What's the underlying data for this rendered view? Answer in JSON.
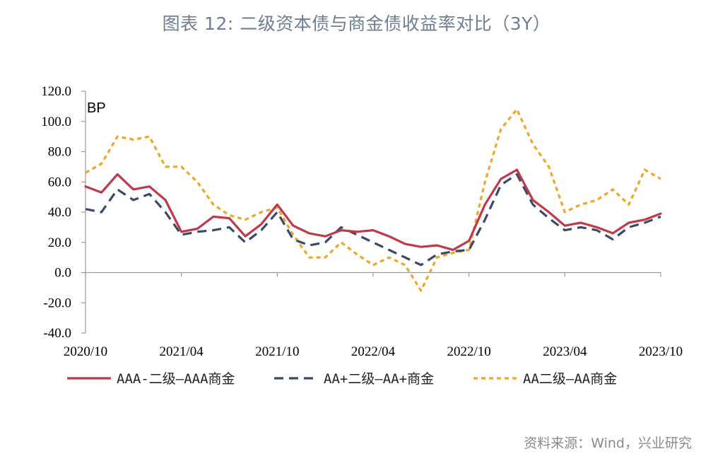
{
  "title": "图表 12: 二级资本债与商金债收益率对比（3Y）",
  "source": "资料来源：Wind，兴业研究",
  "chart_data": {
    "type": "line",
    "unit": "BP",
    "ylim": [
      -40,
      120
    ],
    "yticks": [
      "120.0",
      "100.0",
      "80.0",
      "60.0",
      "40.0",
      "20.0",
      "0.0",
      "-20.0",
      "-40.0"
    ],
    "xticks": [
      "2020/10",
      "2021/04",
      "2021/10",
      "2022/04",
      "2022/10",
      "2023/04",
      "2023/10"
    ],
    "x": [
      "2020-10",
      "2020-11",
      "2020-12",
      "2021-01",
      "2021-02",
      "2021-03",
      "2021-04",
      "2021-05",
      "2021-06",
      "2021-07",
      "2021-08",
      "2021-09",
      "2021-10",
      "2021-11",
      "2021-12",
      "2022-01",
      "2022-02",
      "2022-03",
      "2022-04",
      "2022-05",
      "2022-06",
      "2022-07",
      "2022-08",
      "2022-09",
      "2022-10",
      "2022-11",
      "2022-12",
      "2023-01",
      "2023-02",
      "2023-03",
      "2023-04",
      "2023-05",
      "2023-06",
      "2023-07",
      "2023-08",
      "2023-09",
      "2023-10"
    ],
    "series": [
      {
        "name": "AAA-二级—AAA商金",
        "color": "#c0394b",
        "dash": "solid",
        "values": [
          57,
          53,
          65,
          55,
          57,
          48,
          27,
          29,
          37,
          36,
          24,
          32,
          45,
          31,
          26,
          24,
          28,
          27,
          28,
          24,
          19,
          17,
          18,
          15,
          21,
          45,
          62,
          68,
          48,
          40,
          31,
          33,
          30,
          26,
          33,
          35,
          39
        ]
      },
      {
        "name": "AA+二级—AA+商金",
        "color": "#3b4a66",
        "dash": "dash",
        "values": [
          42,
          40,
          55,
          48,
          52,
          40,
          25,
          27,
          28,
          30,
          20,
          28,
          40,
          22,
          18,
          20,
          30,
          25,
          20,
          15,
          10,
          5,
          12,
          14,
          15,
          35,
          58,
          65,
          45,
          36,
          28,
          30,
          28,
          22,
          30,
          33,
          37
        ]
      },
      {
        "name": "AA二级—AA商金",
        "color": "#f0a628",
        "dash": "dot",
        "values": [
          66,
          72,
          90,
          88,
          90,
          70,
          70,
          60,
          45,
          38,
          35,
          40,
          43,
          25,
          10,
          10,
          20,
          12,
          5,
          10,
          5,
          -12,
          10,
          13,
          15,
          60,
          95,
          108,
          85,
          70,
          40,
          45,
          48,
          55,
          45,
          68,
          62
        ]
      }
    ]
  }
}
